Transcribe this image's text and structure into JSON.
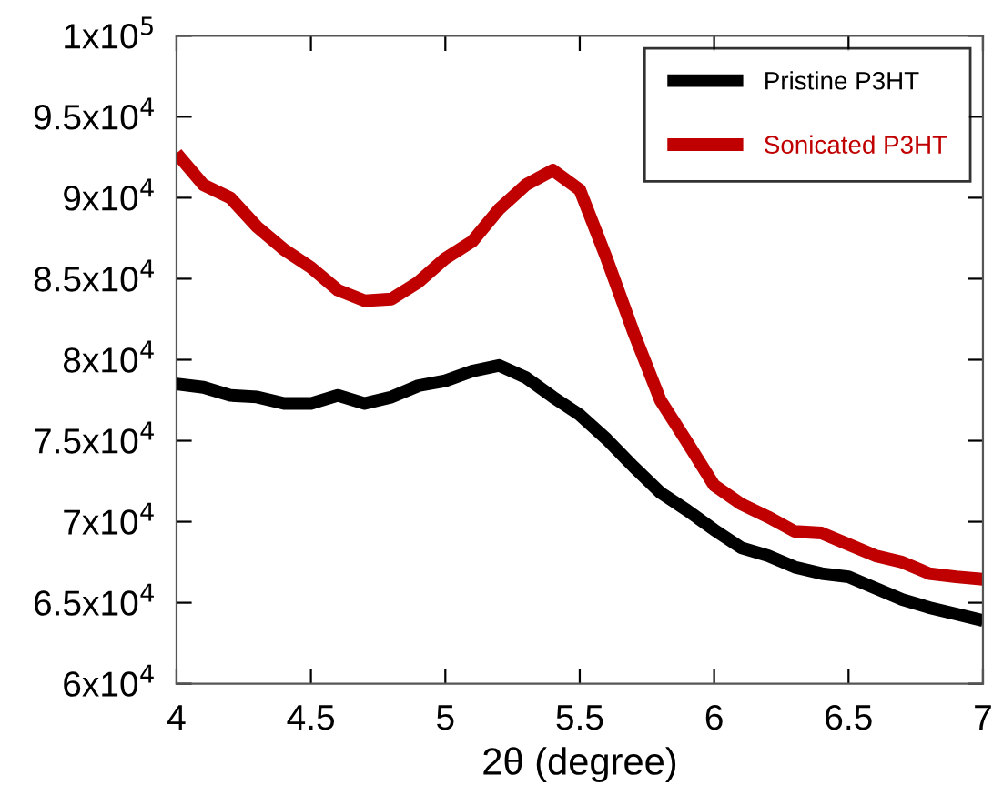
{
  "chart_data": {
    "type": "line",
    "xlabel": "2θ (degree)",
    "x": [
      4.0,
      4.1,
      4.2,
      4.3,
      4.4,
      4.5,
      4.6,
      4.7,
      4.8,
      4.9,
      5.0,
      5.1,
      5.2,
      5.3,
      5.4,
      5.5,
      5.6,
      5.7,
      5.8,
      5.9,
      6.0,
      6.1,
      6.2,
      6.3,
      6.4,
      6.5,
      6.6,
      6.7,
      6.8,
      6.9,
      7.0
    ],
    "series": [
      {
        "name": "Pristine P3HT",
        "color": "#000000",
        "values": [
          78500,
          78300,
          77800,
          77700,
          77300,
          77300,
          77800,
          77300,
          77700,
          78400,
          78700,
          79300,
          79650,
          78900,
          77700,
          76600,
          75100,
          73400,
          71800,
          70700,
          69500,
          68400,
          67900,
          67200,
          66800,
          66600,
          65900,
          65200,
          64700,
          64300,
          63900
        ]
      },
      {
        "name": "Sonicated P3HT",
        "color": "#c00000",
        "values": [
          92750,
          90800,
          90000,
          88200,
          86800,
          85700,
          84300,
          83640,
          83750,
          84800,
          86260,
          87300,
          89300,
          90800,
          91700,
          90500,
          86260,
          81700,
          77500,
          74900,
          72250,
          71100,
          70300,
          69400,
          69300,
          68600,
          67900,
          67500,
          66800,
          66600,
          66450
        ]
      }
    ],
    "xlim": [
      4,
      7
    ],
    "xticks": [
      4,
      4.5,
      5,
      5.5,
      6,
      6.5,
      7
    ],
    "ylim": [
      60000,
      100000
    ],
    "yticks": [
      {
        "value": 60000,
        "label": "6x10$^{4}$"
      },
      {
        "value": 65000,
        "label": "6.5x10$^{4}$"
      },
      {
        "value": 70000,
        "label": "7x10$^{4}$"
      },
      {
        "value": 75000,
        "label": "7.5x10$^{4}$"
      },
      {
        "value": 80000,
        "label": "8x10$^{4}$"
      },
      {
        "value": 85000,
        "label": "8.5x10$^{4}$"
      },
      {
        "value": 90000,
        "label": "9x10$^{4}$"
      },
      {
        "value": 95000,
        "label": "9.5x10$^{4}$"
      },
      {
        "value": 100000,
        "label": "1x10$^{5}$"
      }
    ],
    "legend": "top right",
    "grid": false,
    "marker": "none",
    "line_style": "solid"
  }
}
